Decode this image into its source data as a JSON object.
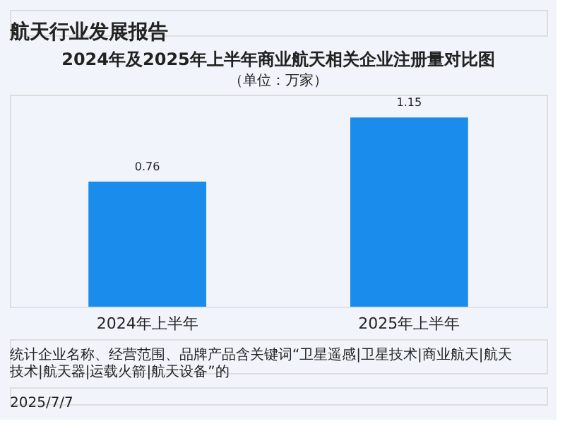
{
  "chart_data": {
    "type": "bar",
    "title": "2024年及2025年上半年商业航天相关企业注册量对比图",
    "subtitle": "（单位：万家）",
    "categories": [
      "2024年上半年",
      "2025年上半年"
    ],
    "values": [
      0.76,
      1.15
    ],
    "color": "#1a8cec",
    "data_labels": true,
    "annotations": [
      "航天行业发展报告",
      "统计企业名称、经营范围、品牌产品含关键词“卫星遥感|卫星技术|商业航天|航天技术|航天器|运载火箭|航天设备”的",
      "2025/7/7"
    ]
  }
}
